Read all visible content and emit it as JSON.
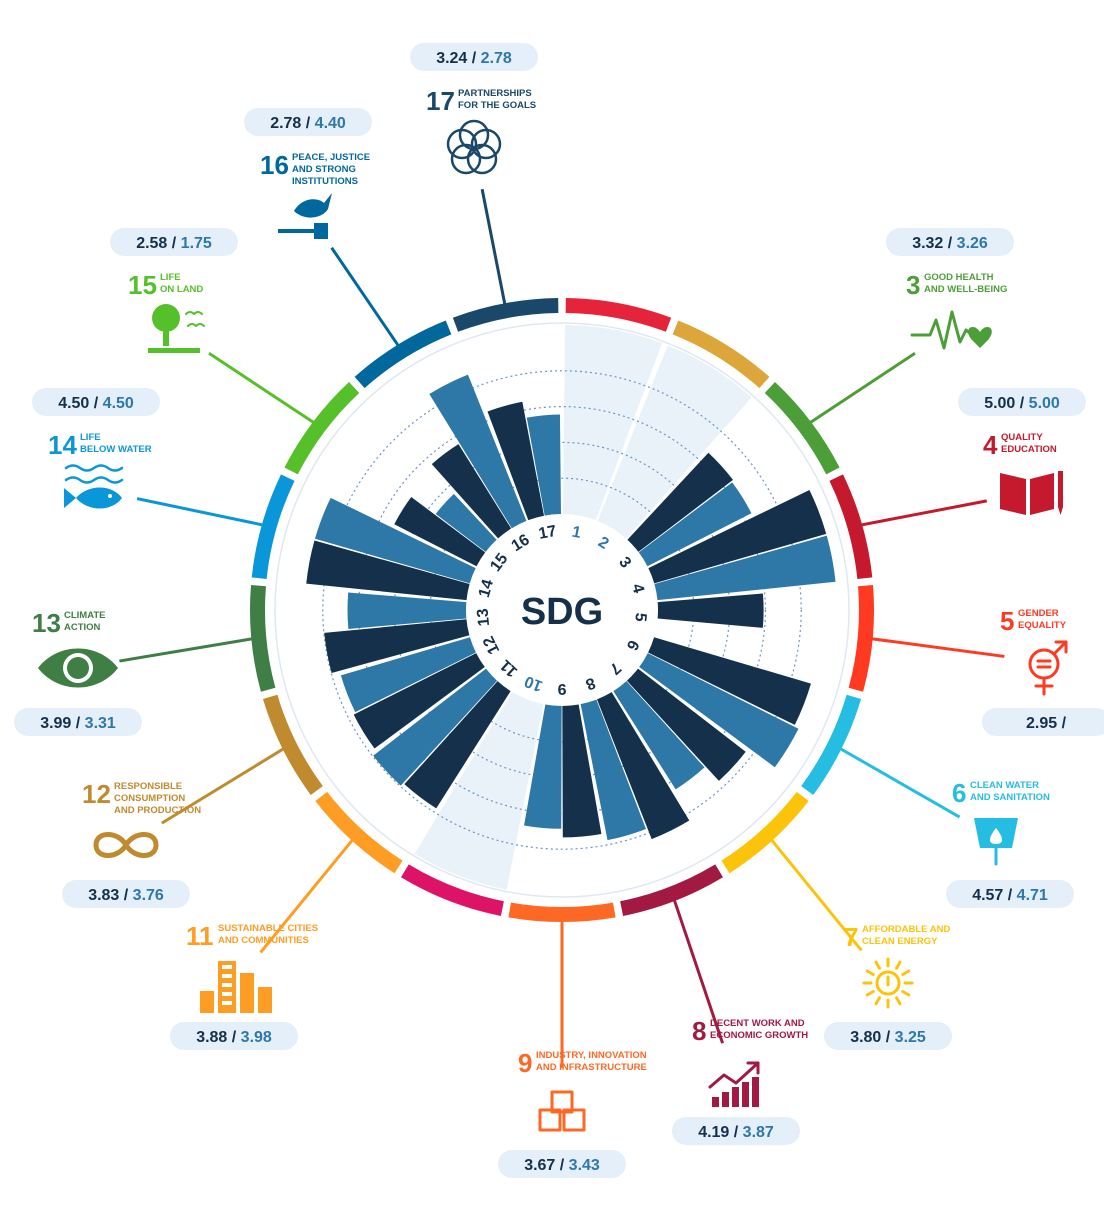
{
  "center_label": "SDG",
  "chart_data": {
    "type": "radial-bar",
    "rlim": [
      0,
      5
    ],
    "series": [
      {
        "color": "#14304a"
      },
      {
        "color": "#2e78a8"
      }
    ],
    "goals": [
      {
        "num": "1",
        "v1": null,
        "v2": null,
        "color": "#e5243b",
        "show_values": false,
        "title_lines": []
      },
      {
        "num": "2",
        "v1": null,
        "v2": null,
        "color": "#dda63a",
        "show_values": false,
        "title_lines": []
      },
      {
        "num": "3",
        "v1": 3.32,
        "v2": 3.26,
        "color": "#4c9f38",
        "label1": "3.32",
        "label2": "3.26",
        "show_values": true,
        "title_lines": [
          "GOOD HEALTH",
          "AND WELL-BEING"
        ],
        "icon": "heartbeat-icon"
      },
      {
        "num": "4",
        "v1": 5.0,
        "v2": 5.0,
        "color": "#c5192d",
        "label1": "5.00",
        "label2": "5.00",
        "show_values": true,
        "title_lines": [
          "QUALITY",
          "EDUCATION"
        ],
        "icon": "book-icon"
      },
      {
        "num": "5",
        "v1": 2.95,
        "v2": null,
        "color": "#ff3a21",
        "label1": "2.95",
        "label2": "",
        "show_values": true,
        "title_lines": [
          "GENDER",
          "EQUALITY"
        ],
        "icon": "gender-equality-icon"
      },
      {
        "num": "6",
        "v1": 4.57,
        "v2": 4.71,
        "color": "#26bde2",
        "label1": "4.57",
        "label2": "4.71",
        "show_values": true,
        "title_lines": [
          "CLEAN WATER",
          "AND SANITATION"
        ],
        "icon": "water-drop-icon"
      },
      {
        "num": "7",
        "v1": 3.8,
        "v2": 3.25,
        "color": "#fcc30b",
        "label1": "3.80",
        "label2": "3.25",
        "show_values": true,
        "title_lines": [
          "AFFORDABLE AND",
          "CLEAN ENERGY"
        ],
        "icon": "sun-power-icon"
      },
      {
        "num": "8",
        "v1": 4.19,
        "v2": 3.87,
        "color": "#a21942",
        "label1": "4.19",
        "label2": "3.87",
        "show_values": true,
        "title_lines": [
          "DECENT WORK AND",
          "ECONOMIC GROWTH"
        ],
        "icon": "growth-chart-icon"
      },
      {
        "num": "9",
        "v1": 3.67,
        "v2": 3.43,
        "color": "#fd6925",
        "label1": "3.67",
        "label2": "3.43",
        "show_values": true,
        "title_lines": [
          "INDUSTRY, INNOVATION",
          "AND INFRASTRUCTURE"
        ],
        "icon": "cubes-icon"
      },
      {
        "num": "10",
        "v1": null,
        "v2": null,
        "color": "#dd1367",
        "show_values": false,
        "title_lines": []
      },
      {
        "num": "11",
        "v1": 3.88,
        "v2": 3.98,
        "color": "#fd9d24",
        "label1": "3.88",
        "label2": "3.98",
        "show_values": true,
        "title_lines": [
          "SUSTAINABLE CITIES",
          "AND COMMUNITIES"
        ],
        "icon": "city-icon"
      },
      {
        "num": "12",
        "v1": 3.83,
        "v2": 3.76,
        "color": "#bf8b2e",
        "label1": "3.83",
        "label2": "3.76",
        "show_values": true,
        "title_lines": [
          "RESPONSIBLE",
          "CONSUMPTION",
          "AND PRODUCTION"
        ],
        "icon": "infinity-icon"
      },
      {
        "num": "13",
        "v1": 3.99,
        "v2": 3.31,
        "color": "#3f7e44",
        "label1": "3.99",
        "label2": "3.31",
        "show_values": true,
        "title_lines": [
          "CLIMATE",
          "ACTION"
        ],
        "icon": "globe-eye-icon"
      },
      {
        "num": "14",
        "v1": 4.5,
        "v2": 4.5,
        "color": "#0a97d9",
        "label1": "4.50",
        "label2": "4.50",
        "show_values": true,
        "title_lines": [
          "LIFE",
          "BELOW WATER"
        ],
        "icon": "fish-icon"
      },
      {
        "num": "15",
        "v1": 2.58,
        "v2": 1.75,
        "color": "#56c02b",
        "label1": "2.58",
        "label2": "1.75",
        "show_values": true,
        "title_lines": [
          "LIFE",
          "ON LAND"
        ],
        "icon": "tree-icon"
      },
      {
        "num": "16",
        "v1": 2.78,
        "v2": 4.4,
        "color": "#00689d",
        "label1": "2.78",
        "label2": "4.40",
        "show_values": true,
        "title_lines": [
          "PEACE, JUSTICE",
          "AND STRONG",
          "INSTITUTIONS"
        ],
        "icon": "dove-gavel-icon"
      },
      {
        "num": "17",
        "v1": 3.24,
        "v2": 2.78,
        "color": "#19486a",
        "label1": "3.24",
        "label2": "2.78",
        "show_values": true,
        "title_lines": [
          "PARTNERSHIPS",
          "FOR THE GOALS"
        ],
        "icon": "rings-icon"
      }
    ]
  }
}
